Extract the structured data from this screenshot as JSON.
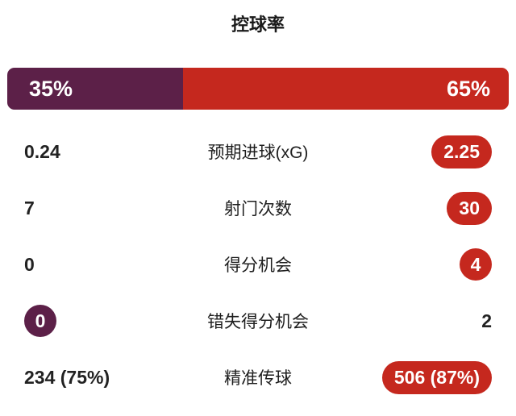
{
  "colors": {
    "home_accent": "#5c2048",
    "away_accent": "#c5281e",
    "text": "#222222",
    "background": "#ffffff",
    "badge_text": "#ffffff"
  },
  "possession": {
    "title": "控球率",
    "home_pct": "35%",
    "away_pct": "65%",
    "home_value": 35,
    "away_value": 65
  },
  "stats": [
    {
      "label": "预期进球(xG)",
      "home": "0.24",
      "away": "2.25"
    },
    {
      "label": "射门次数",
      "home": "7",
      "away": "30"
    },
    {
      "label": "得分机会",
      "home": "0",
      "away": "4"
    },
    {
      "label": "错失得分机会",
      "home": "0",
      "away": "2"
    },
    {
      "label": "精准传球",
      "home": "234 (75%)",
      "away": "506 (87%)"
    }
  ],
  "chart_data": {
    "type": "bar",
    "title": "控球率",
    "categories": [
      "控球率",
      "预期进球(xG)",
      "射门次数",
      "得分机会",
      "错失得分机会",
      "精准传球"
    ],
    "series": [
      {
        "name": "left",
        "color": "#5c2048",
        "values": [
          35,
          0.24,
          7,
          0,
          0,
          234
        ]
      },
      {
        "name": "right",
        "color": "#c5281e",
        "values": [
          65,
          2.25,
          30,
          4,
          2,
          506
        ]
      }
    ],
    "value_labels": {
      "left": [
        "35%",
        "0.24",
        "7",
        "0",
        "0",
        "234 (75%)"
      ],
      "right": [
        "65%",
        "2.25",
        "30",
        "4",
        "2",
        "506 (87%)"
      ]
    },
    "highlighted": {
      "left": [
        false,
        false,
        false,
        false,
        true,
        false
      ],
      "right": [
        true,
        true,
        true,
        true,
        false,
        true
      ]
    },
    "legend_position": "none",
    "grid": false
  }
}
